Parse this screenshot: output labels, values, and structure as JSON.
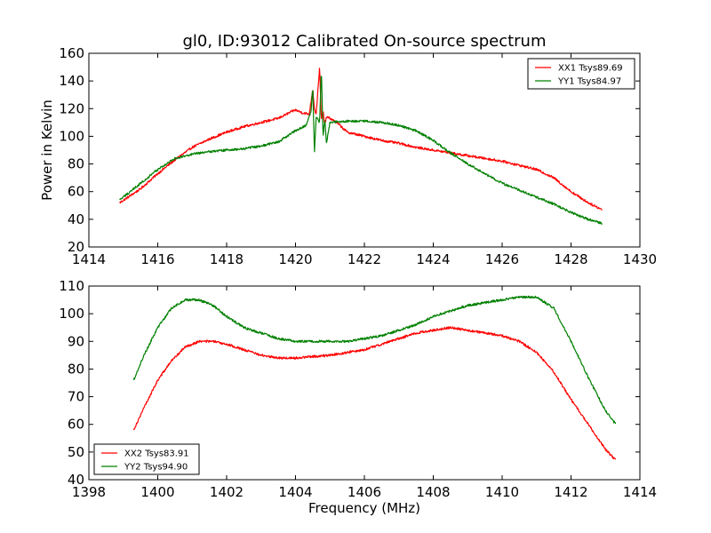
{
  "chart_data": [
    {
      "type": "line",
      "title": "gl0, ID:93012 Calibrated On-source spectrum",
      "xlabel": "",
      "ylabel": "Power in Kelvin",
      "xlim": [
        1414,
        1430
      ],
      "ylim": [
        20,
        160
      ],
      "xticks": [
        "1414",
        "1416",
        "1418",
        "1420",
        "1422",
        "1424",
        "1426",
        "1428",
        "1430"
      ],
      "yticks": [
        "20",
        "40",
        "60",
        "80",
        "100",
        "120",
        "140",
        "160"
      ],
      "grid": false,
      "legend_position": "top-right",
      "series": [
        {
          "name": "XX1 Tsys89.69",
          "color": "#ff0000",
          "x": [
            1414.9,
            1415.5,
            1416.0,
            1416.5,
            1417.0,
            1417.5,
            1418.0,
            1418.5,
            1419.0,
            1419.5,
            1419.9,
            1420.0,
            1420.2,
            1420.4,
            1420.5,
            1420.55,
            1420.6,
            1420.7,
            1420.75,
            1420.8,
            1420.85,
            1420.9,
            1421.0,
            1421.2,
            1421.5,
            1422.0,
            1422.5,
            1423.0,
            1423.5,
            1424.0,
            1424.5,
            1425.0,
            1425.5,
            1426.0,
            1426.5,
            1427.0,
            1427.5,
            1428.0,
            1428.5,
            1428.9
          ],
          "values": [
            52,
            62,
            73,
            83,
            92,
            98,
            103,
            107,
            110,
            113,
            118,
            119,
            117,
            116,
            134,
            120,
            116,
            150,
            112,
            118,
            108,
            114,
            113,
            110,
            103,
            100,
            97,
            95,
            92,
            90,
            88,
            86,
            84,
            82,
            79,
            76,
            70,
            60,
            52,
            47
          ]
        },
        {
          "name": "YY1 Tsys84.97",
          "color": "#008000",
          "x": [
            1414.9,
            1415.5,
            1416.0,
            1416.5,
            1417.0,
            1417.5,
            1418.0,
            1418.5,
            1419.0,
            1419.5,
            1420.0,
            1420.3,
            1420.45,
            1420.5,
            1420.55,
            1420.6,
            1420.7,
            1420.75,
            1420.8,
            1420.85,
            1420.9,
            1421.0,
            1421.5,
            1422.0,
            1422.5,
            1423.0,
            1423.5,
            1424.0,
            1424.5,
            1425.0,
            1425.5,
            1426.0,
            1426.5,
            1427.0,
            1427.5,
            1428.0,
            1428.5,
            1428.9
          ],
          "values": [
            54,
            66,
            76,
            84,
            87,
            89,
            90,
            91,
            93,
            96,
            104,
            108,
            118,
            136,
            88,
            114,
            110,
            148,
            100,
            112,
            95,
            110,
            111,
            111,
            110,
            108,
            104,
            97,
            88,
            80,
            73,
            66,
            61,
            56,
            51,
            45,
            40,
            37
          ]
        }
      ]
    },
    {
      "type": "line",
      "title": "",
      "xlabel": "Frequency (MHz)",
      "ylabel": "",
      "xlim": [
        1398,
        1414
      ],
      "ylim": [
        40,
        110
      ],
      "xticks": [
        "1398",
        "1400",
        "1402",
        "1404",
        "1406",
        "1408",
        "1410",
        "1412",
        "1414"
      ],
      "yticks": [
        "40",
        "50",
        "60",
        "70",
        "80",
        "90",
        "100",
        "110"
      ],
      "grid": false,
      "legend_position": "bottom-left",
      "series": [
        {
          "name": "XX2 Tsys83.91",
          "color": "#ff0000",
          "x": [
            1399.3,
            1399.6,
            1400.0,
            1400.4,
            1400.8,
            1401.2,
            1401.6,
            1402.0,
            1402.5,
            1403.0,
            1403.5,
            1404.0,
            1404.5,
            1405.0,
            1405.5,
            1406.0,
            1406.5,
            1407.0,
            1407.5,
            1408.0,
            1408.5,
            1409.0,
            1409.5,
            1410.0,
            1410.5,
            1411.0,
            1411.5,
            1412.0,
            1412.5,
            1413.0,
            1413.3
          ],
          "values": [
            58,
            66,
            76,
            83,
            88,
            90,
            90,
            89,
            87,
            85,
            84,
            84,
            84.5,
            85,
            86,
            87,
            89,
            91,
            93,
            94,
            95,
            94,
            93,
            92,
            90,
            86,
            79,
            69,
            60,
            51,
            47
          ]
        },
        {
          "name": "YY2 Tsys94.90",
          "color": "#008000",
          "x": [
            1399.3,
            1399.6,
            1400.0,
            1400.4,
            1400.8,
            1401.2,
            1401.6,
            1402.0,
            1402.5,
            1403.0,
            1403.5,
            1404.0,
            1404.5,
            1405.0,
            1405.5,
            1406.0,
            1406.5,
            1407.0,
            1407.5,
            1408.0,
            1408.5,
            1409.0,
            1409.5,
            1410.0,
            1410.5,
            1411.0,
            1411.5,
            1412.0,
            1412.5,
            1413.0,
            1413.3
          ],
          "values": [
            76,
            85,
            95,
            102,
            105,
            105,
            103,
            99,
            95,
            93,
            91,
            90,
            90,
            90,
            90,
            91,
            92,
            94,
            96,
            99,
            101,
            103,
            104,
            105,
            106,
            106,
            102,
            90,
            77,
            65,
            60
          ]
        }
      ]
    }
  ]
}
